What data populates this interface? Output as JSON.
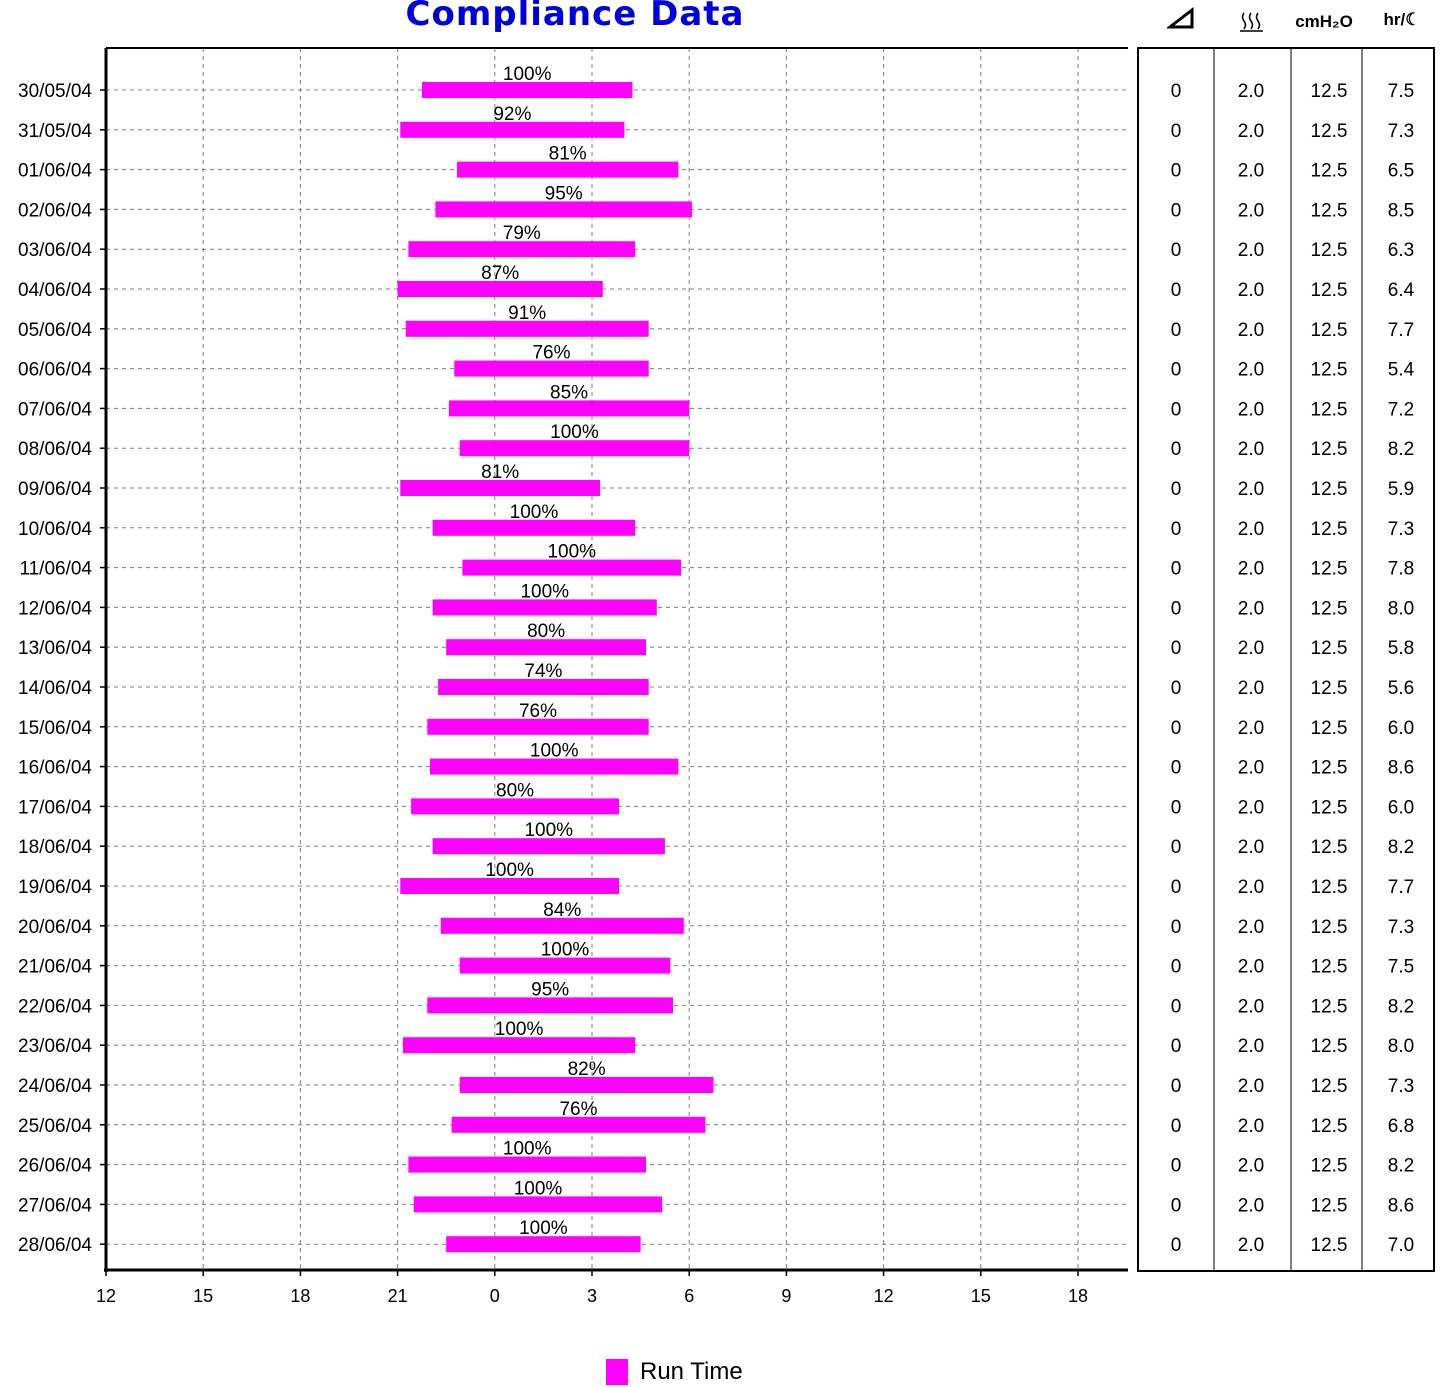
{
  "chart_data": {
    "type": "bar",
    "title": "Compliance Data",
    "x_ticks": [
      "12",
      "15",
      "18",
      "21",
      "0",
      "3",
      "6",
      "9",
      "12",
      "15",
      "18"
    ],
    "x_domain_hours": [
      12,
      43.5
    ],
    "grid": true,
    "bar_color": "#ff00ff",
    "legend": {
      "label": "Run Time",
      "placement": "bottom-center"
    },
    "rows": [
      {
        "date": "30/05/04",
        "start": "21:45",
        "end": "4:15",
        "percent": "100%"
      },
      {
        "date": "31/05/04",
        "start": "21:05",
        "end": "4:00",
        "percent": "92%"
      },
      {
        "date": "01/06/04",
        "start": "22:50",
        "end": "5:40",
        "percent": "81%"
      },
      {
        "date": "02/06/04",
        "start": "22:10",
        "end": "6:05",
        "percent": "95%"
      },
      {
        "date": "03/06/04",
        "start": "21:20",
        "end": "4:20",
        "percent": "79%"
      },
      {
        "date": "04/06/04",
        "start": "21:00",
        "end": "3:20",
        "percent": "87%"
      },
      {
        "date": "05/06/04",
        "start": "21:15",
        "end": "4:45",
        "percent": "91%"
      },
      {
        "date": "06/06/04",
        "start": "22:45",
        "end": "4:45",
        "percent": "76%"
      },
      {
        "date": "07/06/04",
        "start": "22:35",
        "end": "6:00",
        "percent": "85%"
      },
      {
        "date": "08/06/04",
        "start": "22:55",
        "end": "6:00",
        "percent": "100%"
      },
      {
        "date": "09/06/04",
        "start": "21:05",
        "end": "3:15",
        "percent": "81%"
      },
      {
        "date": "10/06/04",
        "start": "22:05",
        "end": "4:20",
        "percent": "100%"
      },
      {
        "date": "11/06/04",
        "start": "23:00",
        "end": "5:45",
        "percent": "100%"
      },
      {
        "date": "12/06/04",
        "start": "22:05",
        "end": "5:00",
        "percent": "100%"
      },
      {
        "date": "13/06/04",
        "start": "22:30",
        "end": "4:40",
        "percent": "80%"
      },
      {
        "date": "14/06/04",
        "start": "22:15",
        "end": "4:45",
        "percent": "74%"
      },
      {
        "date": "15/06/04",
        "start": "21:55",
        "end": "4:45",
        "percent": "76%"
      },
      {
        "date": "16/06/04",
        "start": "22:00",
        "end": "5:40",
        "percent": "100%"
      },
      {
        "date": "17/06/04",
        "start": "21:25",
        "end": "3:50",
        "percent": "80%"
      },
      {
        "date": "18/06/04",
        "start": "22:05",
        "end": "5:15",
        "percent": "100%"
      },
      {
        "date": "19/06/04",
        "start": "21:05",
        "end": "3:50",
        "percent": "100%"
      },
      {
        "date": "20/06/04",
        "start": "22:20",
        "end": "5:50",
        "percent": "84%"
      },
      {
        "date": "21/06/04",
        "start": "22:55",
        "end": "5:25",
        "percent": "100%"
      },
      {
        "date": "22/06/04",
        "start": "21:55",
        "end": "5:30",
        "percent": "95%"
      },
      {
        "date": "23/06/04",
        "start": "21:10",
        "end": "4:20",
        "percent": "100%"
      },
      {
        "date": "24/06/04",
        "start": "22:55",
        "end": "6:45",
        "percent": "82%"
      },
      {
        "date": "25/06/04",
        "start": "22:40",
        "end": "6:30",
        "percent": "76%"
      },
      {
        "date": "26/06/04",
        "start": "21:20",
        "end": "4:40",
        "percent": "100%"
      },
      {
        "date": "27/06/04",
        "start": "21:30",
        "end": "5:10",
        "percent": "100%"
      },
      {
        "date": "28/06/04",
        "start": "22:30",
        "end": "4:30",
        "percent": "100%"
      }
    ],
    "table": {
      "headers": [
        "leak-icon",
        "humidifier-icon",
        "cmH₂O",
        "hr/☾"
      ],
      "rows": [
        [
          "0",
          "2.0",
          "12.5",
          "7.5"
        ],
        [
          "0",
          "2.0",
          "12.5",
          "7.3"
        ],
        [
          "0",
          "2.0",
          "12.5",
          "6.5"
        ],
        [
          "0",
          "2.0",
          "12.5",
          "8.5"
        ],
        [
          "0",
          "2.0",
          "12.5",
          "6.3"
        ],
        [
          "0",
          "2.0",
          "12.5",
          "6.4"
        ],
        [
          "0",
          "2.0",
          "12.5",
          "7.7"
        ],
        [
          "0",
          "2.0",
          "12.5",
          "5.4"
        ],
        [
          "0",
          "2.0",
          "12.5",
          "7.2"
        ],
        [
          "0",
          "2.0",
          "12.5",
          "8.2"
        ],
        [
          "0",
          "2.0",
          "12.5",
          "5.9"
        ],
        [
          "0",
          "2.0",
          "12.5",
          "7.3"
        ],
        [
          "0",
          "2.0",
          "12.5",
          "7.8"
        ],
        [
          "0",
          "2.0",
          "12.5",
          "8.0"
        ],
        [
          "0",
          "2.0",
          "12.5",
          "5.8"
        ],
        [
          "0",
          "2.0",
          "12.5",
          "5.6"
        ],
        [
          "0",
          "2.0",
          "12.5",
          "6.0"
        ],
        [
          "0",
          "2.0",
          "12.5",
          "8.6"
        ],
        [
          "0",
          "2.0",
          "12.5",
          "6.0"
        ],
        [
          "0",
          "2.0",
          "12.5",
          "8.2"
        ],
        [
          "0",
          "2.0",
          "12.5",
          "7.7"
        ],
        [
          "0",
          "2.0",
          "12.5",
          "7.3"
        ],
        [
          "0",
          "2.0",
          "12.5",
          "7.5"
        ],
        [
          "0",
          "2.0",
          "12.5",
          "8.2"
        ],
        [
          "0",
          "2.0",
          "12.5",
          "8.0"
        ],
        [
          "0",
          "2.0",
          "12.5",
          "7.3"
        ],
        [
          "0",
          "2.0",
          "12.5",
          "6.8"
        ],
        [
          "0",
          "2.0",
          "12.5",
          "8.2"
        ],
        [
          "0",
          "2.0",
          "12.5",
          "8.6"
        ],
        [
          "0",
          "2.0",
          "12.5",
          "7.0"
        ]
      ]
    }
  }
}
